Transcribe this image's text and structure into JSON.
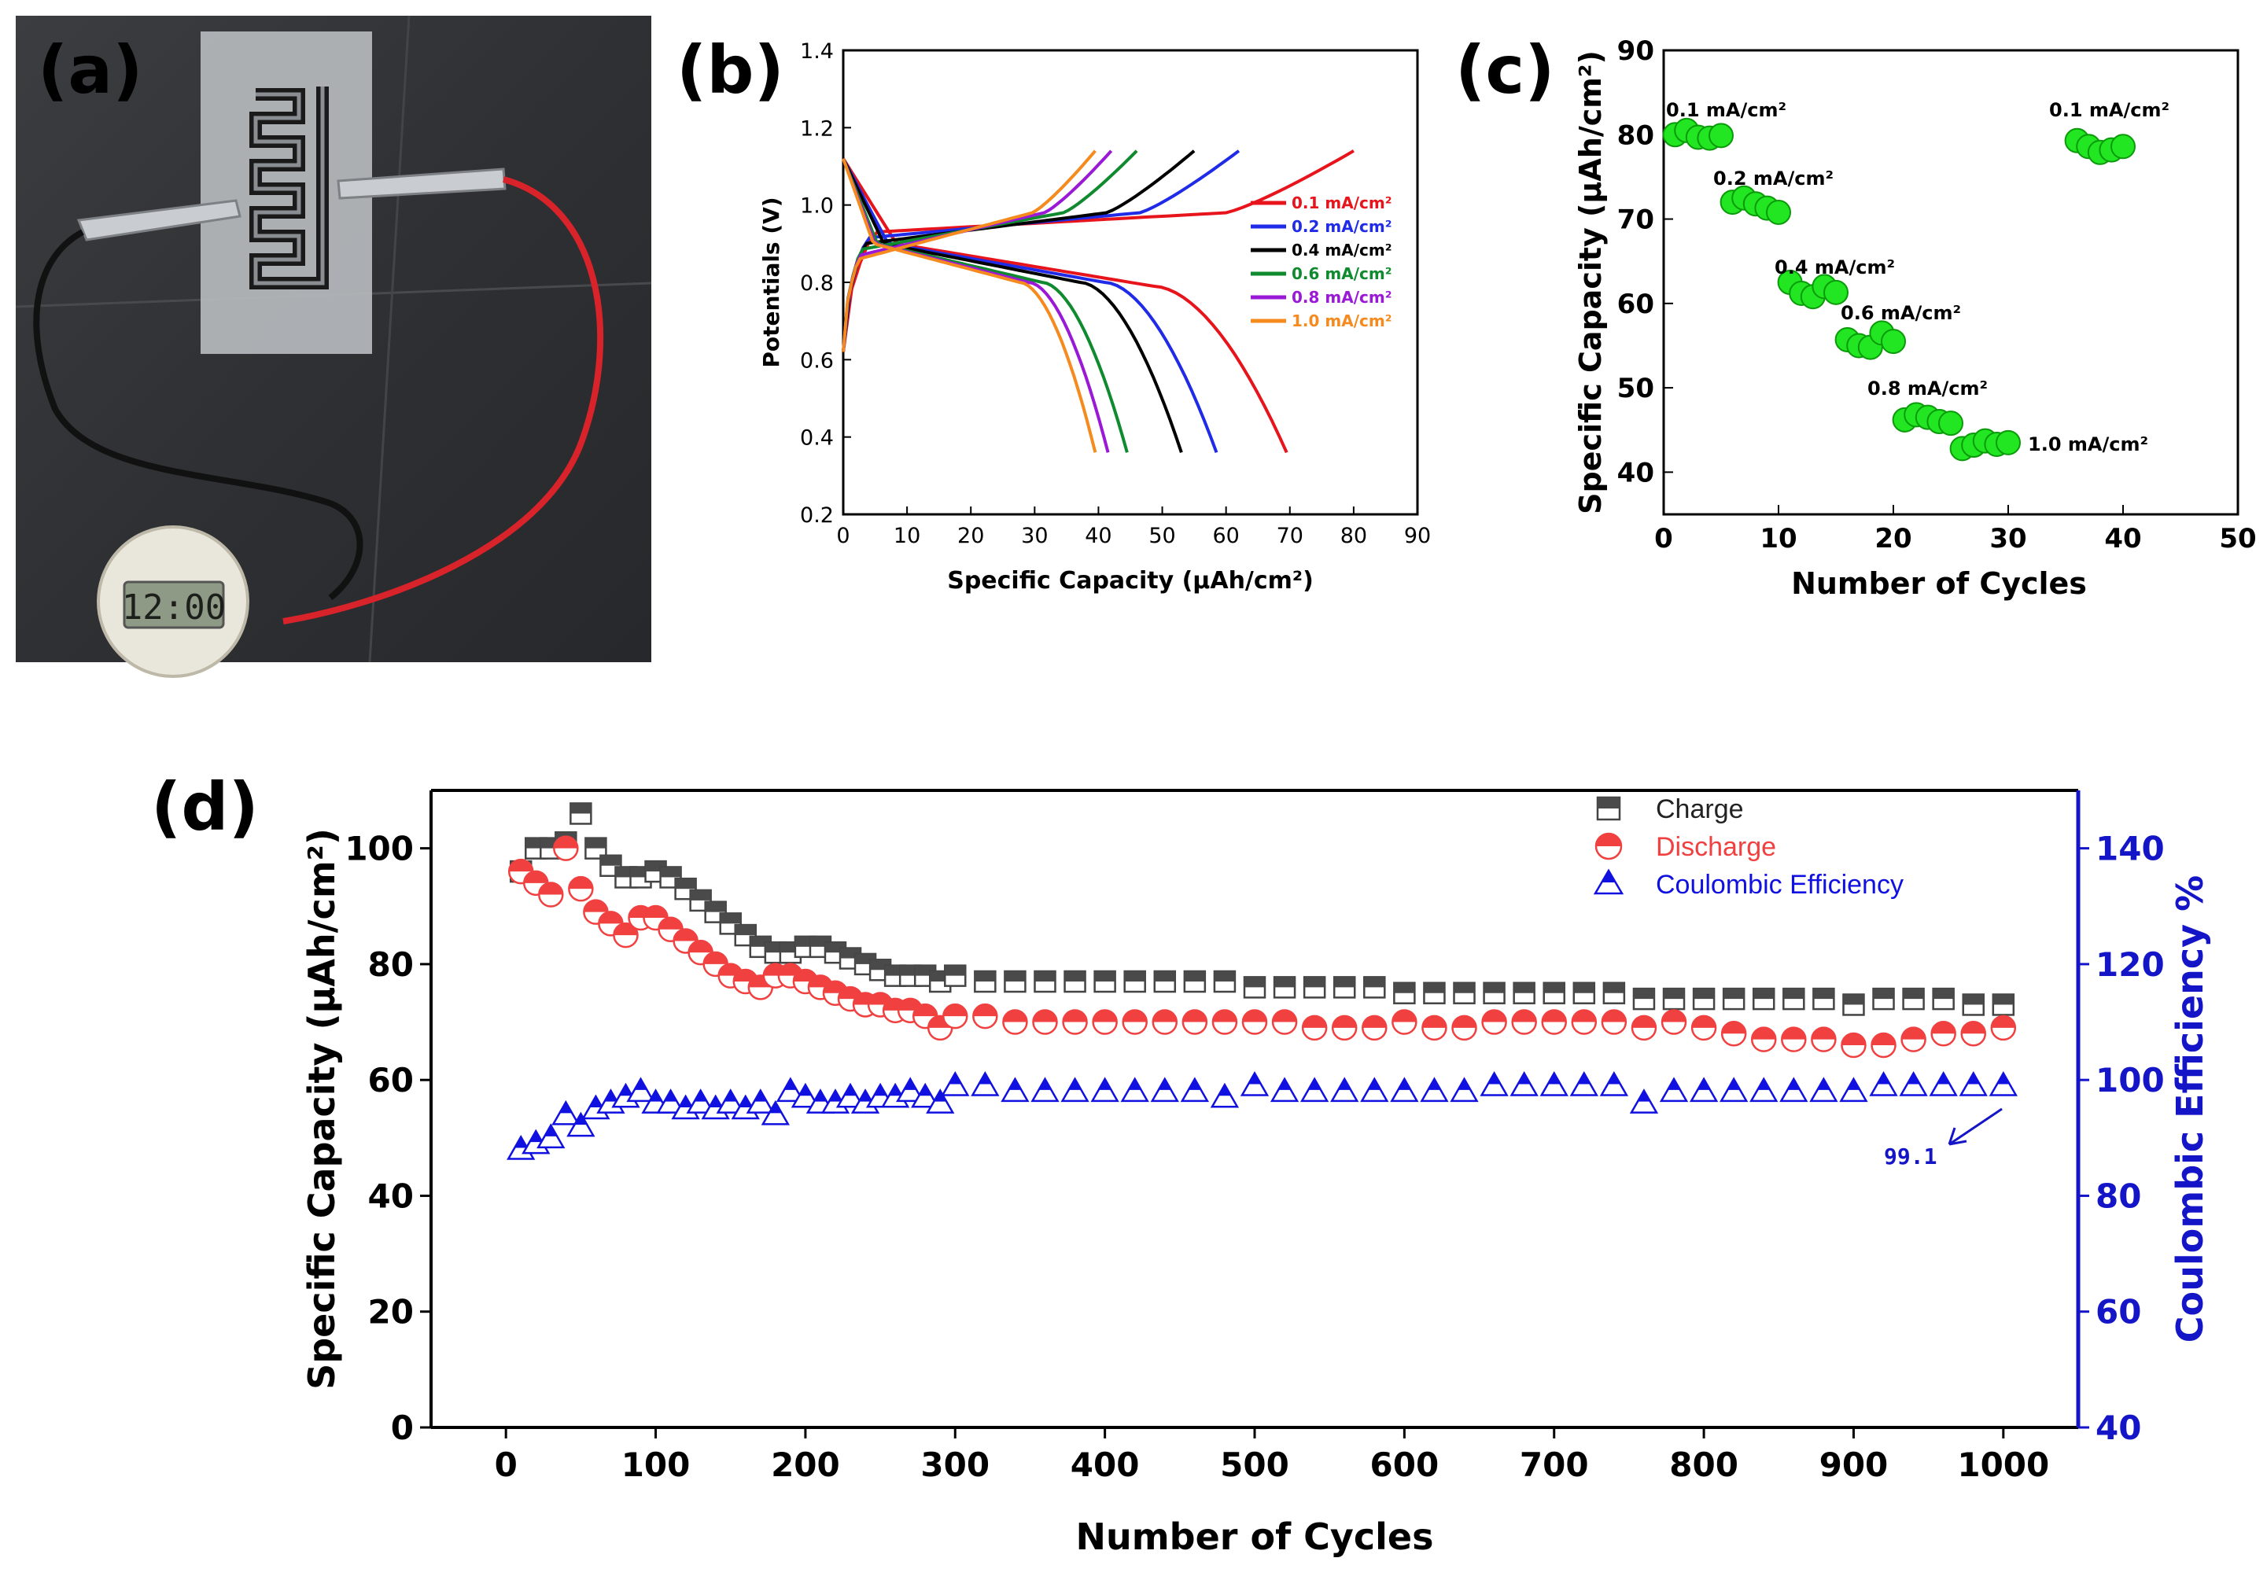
{
  "panels": {
    "a": "(a)",
    "b": "(b)",
    "c": "(c)",
    "d": "(d)"
  },
  "photo": {
    "clock_display": "12:00"
  },
  "chart_data": [
    {
      "id": "b",
      "type": "line",
      "xlabel": "Specific Capacity (μAh/cm²)",
      "ylabel": "Potentials (V)",
      "xlim": [
        0,
        90
      ],
      "ylim": [
        0.2,
        1.4
      ],
      "xticks": [
        "0",
        "10",
        "20",
        "30",
        "40",
        "50",
        "60",
        "70",
        "80",
        "90"
      ],
      "yticks": [
        "0.2",
        "0.4",
        "0.6",
        "0.8",
        "1.0",
        "1.2",
        "1.4"
      ],
      "legend_position": "right",
      "series": [
        {
          "name": "0.1 mA/cm²",
          "color": "#e8141b",
          "charge_end": 80,
          "discharge_end": 69.5,
          "plateau_c": 0.93,
          "plateau_d": 0.79
        },
        {
          "name": "0.2 mA/cm²",
          "color": "#1f2be6",
          "charge_end": 62,
          "discharge_end": 58.5,
          "plateau_c": 0.915,
          "plateau_d": 0.8
        },
        {
          "name": "0.4 mA/cm²",
          "color": "#000000",
          "charge_end": 55,
          "discharge_end": 53,
          "plateau_c": 0.9,
          "plateau_d": 0.8
        },
        {
          "name": "0.6 mA/cm²",
          "color": "#0f8a2e",
          "charge_end": 46,
          "discharge_end": 44.5,
          "plateau_c": 0.885,
          "plateau_d": 0.8
        },
        {
          "name": "0.8 mA/cm²",
          "color": "#9a19d6",
          "charge_end": 42,
          "discharge_end": 41.5,
          "plateau_c": 0.87,
          "plateau_d": 0.8
        },
        {
          "name": "1.0 mA/cm²",
          "color": "#f58a1f",
          "charge_end": 39.5,
          "discharge_end": 39.5,
          "plateau_c": 0.86,
          "plateau_d": 0.8
        }
      ]
    },
    {
      "id": "c",
      "type": "scatter",
      "xlabel": "Number of Cycles",
      "ylabel": "Specific Capacity (μAh/cm²)",
      "xlim": [
        0,
        50
      ],
      "ylim": [
        35,
        90
      ],
      "xticks": [
        "0",
        "10",
        "20",
        "30",
        "40",
        "50"
      ],
      "yticks": [
        "40",
        "50",
        "60",
        "70",
        "80",
        "90"
      ],
      "color": "#22e622",
      "groups": [
        {
          "label": "0.1 mA/cm²",
          "x": [
            1,
            2,
            3,
            4,
            5
          ],
          "y": [
            80,
            80.5,
            79.7,
            79.6,
            79.9
          ]
        },
        {
          "label": "0.2 mA/cm²",
          "x": [
            6,
            7,
            8,
            9,
            10
          ],
          "y": [
            72,
            72.5,
            71.8,
            71.3,
            70.8
          ]
        },
        {
          "label": "0.4 mA/cm²",
          "x": [
            11,
            12,
            13,
            14,
            15
          ],
          "y": [
            62.5,
            61.2,
            60.8,
            62,
            61.3
          ]
        },
        {
          "label": "0.6 mA/cm²",
          "x": [
            16,
            17,
            18,
            19,
            20
          ],
          "y": [
            55.7,
            55,
            54.8,
            56.5,
            55.5
          ]
        },
        {
          "label": "0.8 mA/cm²",
          "x": [
            21,
            22,
            23,
            24,
            25
          ],
          "y": [
            46.2,
            46.8,
            46.5,
            46,
            45.8
          ]
        },
        {
          "label": "1.0 mA/cm²",
          "x": [
            26,
            27,
            28,
            29,
            30
          ],
          "y": [
            42.8,
            43.2,
            43.7,
            43.3,
            43.5
          ]
        },
        {
          "label": "0.1 mA/cm²",
          "x": [
            36,
            37,
            38,
            39,
            40
          ],
          "y": [
            79.3,
            78.6,
            77.9,
            78.2,
            78.6
          ]
        }
      ]
    },
    {
      "id": "d",
      "type": "scatter",
      "xlabel": "Number of Cycles",
      "ylabel": "Specific Capacity (μAh/cm²)",
      "y2label": "Coulombic Efficiency %",
      "xlim": [
        -50,
        1050
      ],
      "ylim": [
        0,
        110
      ],
      "y2lim": [
        40,
        150
      ],
      "xticks": [
        "0",
        "100",
        "200",
        "300",
        "400",
        "500",
        "600",
        "700",
        "800",
        "900",
        "1000"
      ],
      "yticks": [
        "0",
        "20",
        "40",
        "60",
        "80",
        "100"
      ],
      "y2ticks": [
        "40",
        "60",
        "80",
        "100",
        "120",
        "140"
      ],
      "legend_position": "top-right",
      "annotation": "99.1",
      "series": [
        {
          "name": "Charge",
          "color": "#4a4a4a",
          "marker": "square",
          "x": [
            10,
            20,
            30,
            40,
            50,
            60,
            70,
            80,
            90,
            100,
            110,
            120,
            130,
            140,
            150,
            160,
            170,
            180,
            190,
            200,
            210,
            220,
            230,
            240,
            250,
            260,
            270,
            280,
            290,
            300,
            320,
            340,
            360,
            380,
            400,
            420,
            440,
            460,
            480,
            500,
            520,
            540,
            560,
            580,
            600,
            620,
            640,
            660,
            680,
            700,
            720,
            740,
            760,
            780,
            800,
            820,
            840,
            860,
            880,
            900,
            920,
            940,
            960,
            980,
            1000
          ],
          "y": [
            96,
            100,
            100,
            101,
            106,
            100,
            97,
            95,
            95,
            96,
            95,
            93,
            91,
            89,
            87,
            85,
            83,
            82,
            82,
            83,
            83,
            82,
            81,
            80,
            79,
            78,
            78,
            78,
            77,
            78,
            77,
            77,
            77,
            77,
            77,
            77,
            77,
            77,
            77,
            76,
            76,
            76,
            76,
            76,
            75,
            75,
            75,
            75,
            75,
            75,
            75,
            75,
            74,
            74,
            74,
            74,
            74,
            74,
            74,
            73,
            74,
            74,
            74,
            73,
            73
          ]
        },
        {
          "name": "Discharge",
          "color": "#f04040",
          "marker": "circle",
          "x": [
            10,
            20,
            30,
            40,
            50,
            60,
            70,
            80,
            90,
            100,
            110,
            120,
            130,
            140,
            150,
            160,
            170,
            180,
            190,
            200,
            210,
            220,
            230,
            240,
            250,
            260,
            270,
            280,
            290,
            300,
            320,
            340,
            360,
            380,
            400,
            420,
            440,
            460,
            480,
            500,
            520,
            540,
            560,
            580,
            600,
            620,
            640,
            660,
            680,
            700,
            720,
            740,
            760,
            780,
            800,
            820,
            840,
            860,
            880,
            900,
            920,
            940,
            960,
            980,
            1000
          ],
          "y": [
            96,
            94,
            92,
            100,
            93,
            89,
            87,
            85,
            88,
            88,
            86,
            84,
            82,
            80,
            78,
            77,
            76,
            78,
            78,
            77,
            76,
            75,
            74,
            73,
            73,
            72,
            72,
            71,
            69,
            71,
            71,
            70,
            70,
            70,
            70,
            70,
            70,
            70,
            70,
            70,
            70,
            69,
            69,
            69,
            70,
            69,
            69,
            70,
            70,
            70,
            70,
            70,
            69,
            70,
            69,
            68,
            67,
            67,
            67,
            66,
            66,
            67,
            68,
            68,
            69
          ]
        },
        {
          "name": "Coulombic Efficiency",
          "color": "#1010e0",
          "marker": "triangle",
          "x": [
            10,
            20,
            30,
            40,
            50,
            60,
            70,
            80,
            90,
            100,
            110,
            120,
            130,
            140,
            150,
            160,
            170,
            180,
            190,
            200,
            210,
            220,
            230,
            240,
            250,
            260,
            270,
            280,
            290,
            300,
            320,
            340,
            360,
            380,
            400,
            420,
            440,
            460,
            480,
            500,
            520,
            540,
            560,
            580,
            600,
            620,
            640,
            660,
            680,
            700,
            720,
            740,
            760,
            780,
            800,
            820,
            840,
            860,
            880,
            900,
            920,
            940,
            960,
            980,
            1000
          ],
          "y": [
            88,
            89,
            90,
            94,
            92,
            95,
            96,
            97,
            98,
            96,
            96,
            95,
            96,
            95,
            96,
            95,
            96,
            94,
            98,
            97,
            96,
            96,
            97,
            96,
            97,
            97,
            98,
            97,
            96,
            99,
            99,
            98,
            98,
            98,
            98,
            98,
            98,
            98,
            97,
            99,
            98,
            98,
            98,
            98,
            98,
            98,
            98,
            99,
            99,
            99,
            99,
            99,
            96,
            98,
            98,
            98,
            98,
            98,
            98,
            98,
            99,
            99,
            99,
            99,
            99
          ]
        }
      ]
    }
  ]
}
